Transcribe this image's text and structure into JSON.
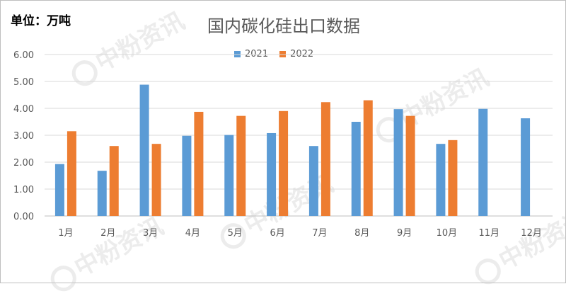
{
  "chart_data": {
    "type": "bar",
    "title": "国内碳化硅出口数据",
    "unit_label": "单位：万吨",
    "categories": [
      "1月",
      "2月",
      "3月",
      "4月",
      "5月",
      "6月",
      "7月",
      "8月",
      "9月",
      "10月",
      "11月",
      "12月"
    ],
    "series": [
      {
        "name": "2021",
        "color": "#5b9bd5",
        "values": [
          1.93,
          1.68,
          4.88,
          2.98,
          3.01,
          3.08,
          2.6,
          3.5,
          3.97,
          2.68,
          3.98,
          3.63
        ]
      },
      {
        "name": "2022",
        "color": "#ed7d31",
        "values": [
          3.15,
          2.6,
          2.68,
          3.87,
          3.72,
          3.9,
          4.23,
          4.3,
          3.72,
          2.82,
          null,
          null
        ]
      }
    ],
    "ylim": [
      0,
      6
    ],
    "yticks": [
      "0.00",
      "1.00",
      "2.00",
      "3.00",
      "4.00",
      "5.00",
      "6.00"
    ],
    "grid": true,
    "legend_position": "top-center"
  },
  "watermark_text": "中粉资讯"
}
